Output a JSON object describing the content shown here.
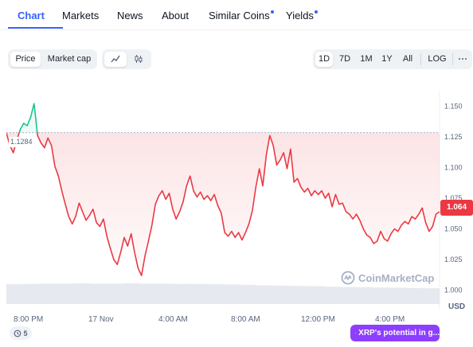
{
  "tabs": [
    {
      "label": "Chart",
      "active": true,
      "dot": false
    },
    {
      "label": "Markets",
      "active": false,
      "dot": false
    },
    {
      "label": "News",
      "active": false,
      "dot": false
    },
    {
      "label": "About",
      "active": false,
      "dot": false
    },
    {
      "label": "Similar Coins",
      "active": false,
      "dot": true
    },
    {
      "label": "Yields",
      "active": false,
      "dot": true
    }
  ],
  "metric_toggle": {
    "price_label": "Price",
    "market_cap_label": "Market cap",
    "selected": "Price"
  },
  "chart_type_toggle": {
    "line_icon": "line-chart-icon",
    "candle_icon": "candlestick-icon",
    "selected": "line"
  },
  "timeframes": {
    "options": [
      "1D",
      "7D",
      "1M",
      "1Y",
      "All"
    ],
    "selected": "1D",
    "log_label": "LOG",
    "more_icon": "more-horizontal-icon"
  },
  "chart_data": {
    "type": "line",
    "currency_label": "USD",
    "y_ticks": [
      "1.150",
      "1.125",
      "1.100",
      "1.075",
      "1.050",
      "1.025",
      "1.000"
    ],
    "y_range": [
      0.9875,
      1.1625
    ],
    "x_tick_labels": [
      "8:00 PM",
      "17 Nov",
      "4:00 AM",
      "8:00 AM",
      "12:00 PM",
      "4:00 PM"
    ],
    "reference_price": 1.1284,
    "reference_label": "1.1284",
    "current_price_label": "1.064",
    "above_reference_color": "#16c784",
    "below_reference_color": "#ea3943",
    "series": [
      {
        "values": [
          1.128,
          1.118,
          1.112,
          1.122,
          1.131,
          1.136,
          1.134,
          1.141,
          1.152,
          1.126,
          1.12,
          1.116,
          1.124,
          1.118,
          1.101,
          1.093,
          1.081,
          1.07,
          1.06,
          1.054,
          1.06,
          1.071,
          1.064,
          1.057,
          1.061,
          1.066,
          1.055,
          1.052,
          1.058,
          1.044,
          1.034,
          1.025,
          1.021,
          1.031,
          1.043,
          1.036,
          1.046,
          1.031,
          1.018,
          1.012,
          1.028,
          1.04,
          1.053,
          1.07,
          1.077,
          1.081,
          1.074,
          1.079,
          1.066,
          1.058,
          1.064,
          1.072,
          1.085,
          1.093,
          1.081,
          1.076,
          1.08,
          1.074,
          1.077,
          1.073,
          1.078,
          1.069,
          1.063,
          1.047,
          1.044,
          1.048,
          1.043,
          1.047,
          1.041,
          1.047,
          1.054,
          1.065,
          1.084,
          1.099,
          1.085,
          1.11,
          1.126,
          1.118,
          1.102,
          1.106,
          1.112,
          1.099,
          1.115,
          1.088,
          1.091,
          1.084,
          1.08,
          1.083,
          1.077,
          1.081,
          1.078,
          1.081,
          1.075,
          1.079,
          1.068,
          1.078,
          1.07,
          1.071,
          1.064,
          1.062,
          1.058,
          1.062,
          1.057,
          1.05,
          1.045,
          1.043,
          1.038,
          1.04,
          1.048,
          1.042,
          1.04,
          1.046,
          1.05,
          1.048,
          1.053,
          1.056,
          1.054,
          1.06,
          1.058,
          1.062,
          1.067,
          1.055,
          1.048,
          1.052,
          1.062,
          1.064
        ]
      }
    ],
    "volume": [
      0.78,
      0.79,
      0.8,
      0.8,
      0.81,
      0.8,
      0.8,
      0.81,
      0.8,
      0.8,
      0.79,
      0.79,
      0.78,
      0.77,
      0.75,
      0.73,
      0.72,
      0.71,
      0.7,
      0.68,
      0.67,
      0.66,
      0.65,
      0.64,
      0.63,
      0.62
    ]
  },
  "watermark": {
    "label": "CoinMarketCap",
    "icon": "coinmarketcap-logo-icon"
  },
  "history_badge": {
    "icon": "history-icon",
    "count": "5"
  },
  "news_pill": {
    "icon": "lightning-icon",
    "label": "XRP's potential in g..."
  }
}
